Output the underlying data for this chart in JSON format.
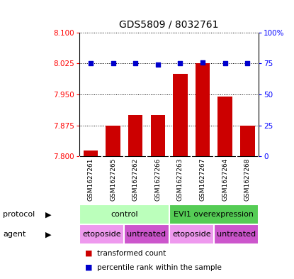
{
  "title": "GDS5809 / 8032761",
  "samples": [
    "GSM1627261",
    "GSM1627265",
    "GSM1627262",
    "GSM1627266",
    "GSM1627263",
    "GSM1627267",
    "GSM1627264",
    "GSM1627268"
  ],
  "bar_values": [
    7.815,
    7.875,
    7.9,
    7.9,
    8.0,
    8.025,
    7.945,
    7.875
  ],
  "percentile_values": [
    75,
    75,
    75,
    74,
    75,
    76,
    75,
    75
  ],
  "ylim_left": [
    7.8,
    8.1
  ],
  "ylim_right": [
    0,
    100
  ],
  "yticks_left": [
    7.8,
    7.875,
    7.95,
    8.025,
    8.1
  ],
  "yticks_right": [
    0,
    25,
    50,
    75,
    100
  ],
  "bar_color": "#cc0000",
  "dot_color": "#0000cc",
  "bar_width": 0.65,
  "protocol_groups": [
    {
      "label": "control",
      "start": 0,
      "end": 4,
      "color": "#bbffbb"
    },
    {
      "label": "EVI1 overexpression",
      "start": 4,
      "end": 8,
      "color": "#55cc55"
    }
  ],
  "agent_groups": [
    {
      "label": "etoposide",
      "start": 0,
      "end": 2,
      "color": "#ee99ee"
    },
    {
      "label": "untreated",
      "start": 2,
      "end": 4,
      "color": "#cc55cc"
    },
    {
      "label": "etoposide",
      "start": 4,
      "end": 6,
      "color": "#ee99ee"
    },
    {
      "label": "untreated",
      "start": 6,
      "end": 8,
      "color": "#cc55cc"
    }
  ],
  "protocol_label": "protocol",
  "agent_label": "agent",
  "legend_bar_label": "transformed count",
  "legend_dot_label": "percentile rank within the sample",
  "background_color": "#ffffff",
  "plot_bg_color": "#ffffff",
  "sample_bg_color": "#c8c8c8"
}
